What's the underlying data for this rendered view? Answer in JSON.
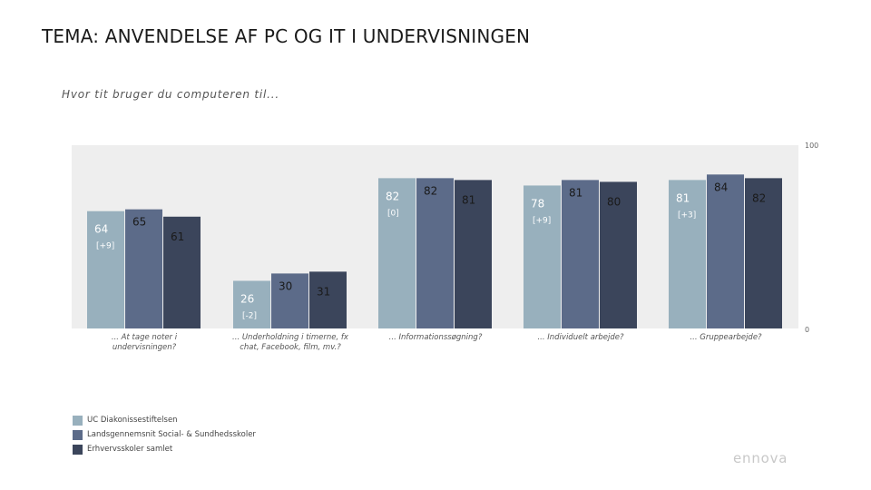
{
  "slide": {
    "title": "TEMA: ANVENDELSE AF PC OG IT I UNDERVISNINGEN",
    "question": "Hvor tit bruger du computeren til..."
  },
  "chart_data": {
    "type": "bar",
    "ylim": [
      0,
      100
    ],
    "axis_max_label": "100",
    "axis_min_label": "0",
    "grid": false,
    "legend_position": "bottom-left",
    "categories": [
      "... At tage noter i undervisningen?",
      "... Underholdning i timerne, fx chat, Facebook, film, mv.?",
      "... Informationssøgning?",
      "... Individuelt arbejde?",
      "... Gruppearbejde?"
    ],
    "category_lines": [
      [
        "... At tage noter i",
        "undervisningen?"
      ],
      [
        "... Underholdning i timerne, fx",
        "chat, Facebook, film, mv.?"
      ],
      [
        "... Informationssøgning?"
      ],
      [
        "... Individuelt arbejde?"
      ],
      [
        "... Gruppearbejde?"
      ]
    ],
    "series": [
      {
        "name": "UC Diakonissestiftelsen",
        "color": "#98b0bd",
        "label_color": "#ffffff",
        "values": [
          64,
          26,
          82,
          78,
          81
        ],
        "changes": [
          "[+9]",
          "[-2]",
          "[0]",
          "[+9]",
          "[+3]"
        ]
      },
      {
        "name": "Landsgennemsnit Social- & Sundhedsskoler",
        "color": "#5c6b89",
        "label_color": "#1a1a1a",
        "values": [
          65,
          30,
          82,
          81,
          84
        ]
      },
      {
        "name": "Erhvervsskoler samlet",
        "color": "#3b455b",
        "label_color": "#1a1a1a",
        "values": [
          61,
          31,
          81,
          80,
          82
        ]
      }
    ]
  },
  "brand": {
    "name": "ennova",
    "color": "#c8c8c8"
  },
  "colors": {
    "plot_background": "#eeeeee"
  }
}
